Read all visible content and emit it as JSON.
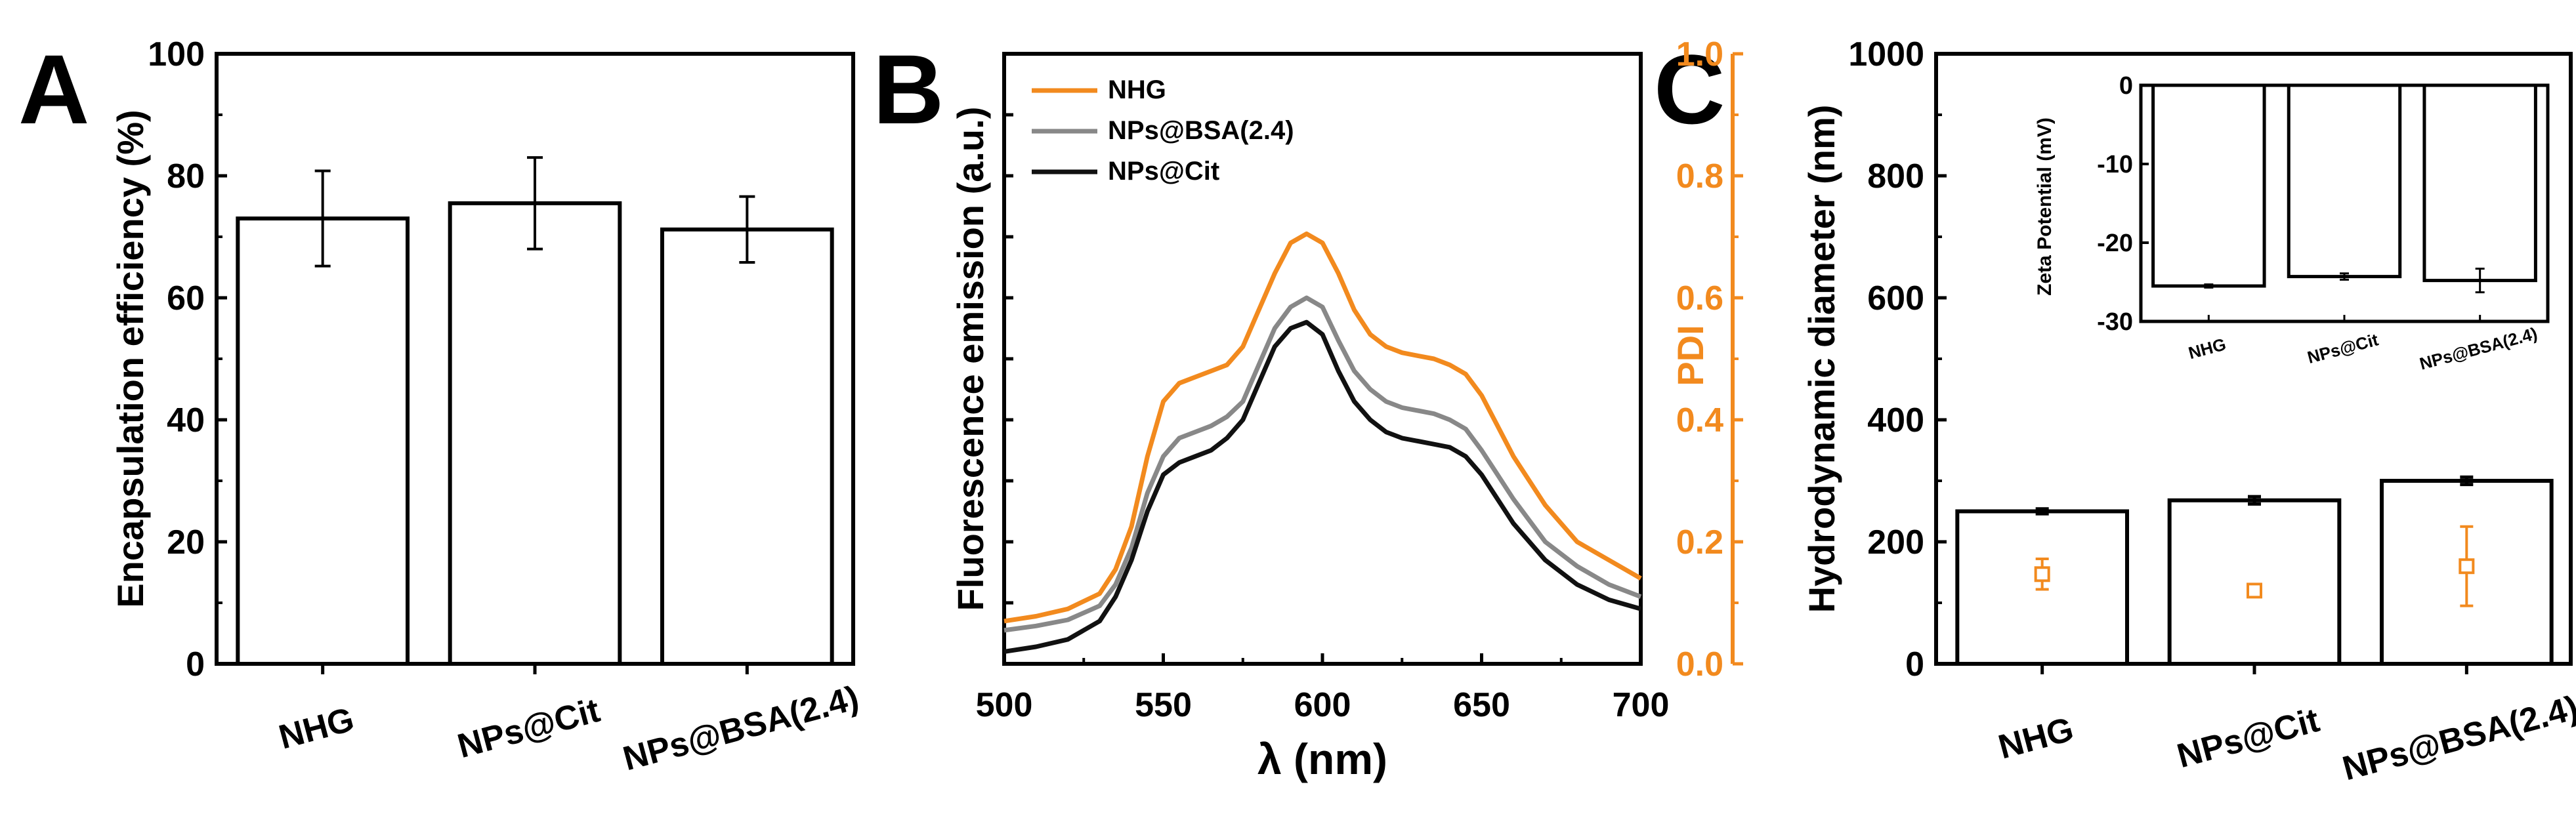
{
  "chart_data": [
    {
      "panel": "A",
      "type": "bar",
      "categories": [
        "NHG",
        "NPs@Cit",
        "NPs@BSA(2.4)"
      ],
      "values": [
        73,
        75.5,
        71.2
      ],
      "errors": [
        7.8,
        7.5,
        5.4
      ],
      "ylabel": "Encapsulation efficiency (%)",
      "ylim": [
        0,
        100
      ],
      "yticks": [
        0,
        20,
        40,
        60,
        80,
        100
      ]
    },
    {
      "panel": "B",
      "type": "line",
      "xlabel": "λ (nm)",
      "ylabel": "Fluorescence emission (a.u.)",
      "xlim": [
        500,
        700
      ],
      "xticks": [
        500,
        550,
        600,
        650,
        700
      ],
      "ylim": [
        0,
        1
      ],
      "legend_position": "top-left",
      "series": [
        {
          "name": "NHG",
          "color": "#f28a1e",
          "x": [
            500,
            510,
            520,
            530,
            535,
            540,
            545,
            550,
            555,
            560,
            565,
            570,
            575,
            580,
            585,
            590,
            595,
            600,
            605,
            610,
            615,
            620,
            625,
            630,
            635,
            640,
            645,
            650,
            655,
            660,
            670,
            680,
            690,
            700
          ],
          "y": [
            0.07,
            0.078,
            0.09,
            0.115,
            0.155,
            0.225,
            0.34,
            0.43,
            0.46,
            0.47,
            0.48,
            0.49,
            0.52,
            0.58,
            0.64,
            0.69,
            0.705,
            0.69,
            0.64,
            0.58,
            0.54,
            0.52,
            0.51,
            0.505,
            0.5,
            0.49,
            0.475,
            0.44,
            0.39,
            0.34,
            0.26,
            0.2,
            0.17,
            0.14
          ]
        },
        {
          "name": "NPs@BSA(2.4)",
          "color": "#888888",
          "x": [
            500,
            510,
            520,
            530,
            535,
            540,
            545,
            550,
            555,
            560,
            565,
            570,
            575,
            580,
            585,
            590,
            595,
            600,
            605,
            610,
            615,
            620,
            625,
            630,
            635,
            640,
            645,
            650,
            655,
            660,
            670,
            680,
            690,
            700
          ],
          "y": [
            0.055,
            0.062,
            0.072,
            0.095,
            0.13,
            0.19,
            0.28,
            0.34,
            0.37,
            0.38,
            0.39,
            0.405,
            0.43,
            0.49,
            0.55,
            0.585,
            0.6,
            0.585,
            0.53,
            0.48,
            0.45,
            0.43,
            0.42,
            0.415,
            0.41,
            0.4,
            0.385,
            0.35,
            0.31,
            0.27,
            0.2,
            0.16,
            0.13,
            0.11
          ]
        },
        {
          "name": "NPs@Cit",
          "color": "#111111",
          "x": [
            500,
            510,
            520,
            530,
            535,
            540,
            545,
            550,
            555,
            560,
            565,
            570,
            575,
            580,
            585,
            590,
            595,
            600,
            605,
            610,
            615,
            620,
            625,
            630,
            635,
            640,
            645,
            650,
            655,
            660,
            670,
            680,
            690,
            700
          ],
          "y": [
            0.02,
            0.028,
            0.04,
            0.07,
            0.11,
            0.17,
            0.25,
            0.31,
            0.33,
            0.34,
            0.35,
            0.37,
            0.4,
            0.46,
            0.52,
            0.55,
            0.56,
            0.54,
            0.48,
            0.43,
            0.4,
            0.38,
            0.37,
            0.365,
            0.36,
            0.355,
            0.34,
            0.31,
            0.27,
            0.23,
            0.17,
            0.13,
            0.105,
            0.09
          ]
        }
      ]
    },
    {
      "panel": "C",
      "type": "bar",
      "categories": [
        "NHG",
        "NPs@Cit",
        "NPs@BSA(2.4)"
      ],
      "series": [
        {
          "name": "Hydrodynamic diameter",
          "values": [
            250,
            268,
            300
          ],
          "errors": [
            4,
            6,
            6
          ]
        },
        {
          "name": "PDI",
          "color": "#f28a1e",
          "values": [
            0.147,
            0.12,
            0.16
          ],
          "errors": [
            0.025,
            0.008,
            0.065
          ]
        }
      ],
      "ylabel": "Hydrodynamic diameter (nm)",
      "ylim": [
        0,
        1000
      ],
      "yticks": [
        0,
        200,
        400,
        600,
        800,
        1000
      ],
      "y2label": "PDI",
      "y2lim": [
        0,
        1
      ],
      "y2ticks": [
        "0.0",
        "0.2",
        "0.4",
        "0.6",
        "0.8",
        "1.0"
      ],
      "inset": {
        "type": "bar",
        "categories": [
          "NHG",
          "NPs@Cit",
          "NPs@BSA(2.4)"
        ],
        "values": [
          -25.5,
          -24.3,
          -24.8
        ],
        "errors": [
          0.2,
          0.4,
          1.5
        ],
        "ylabel": "Zeta Potential (mV)",
        "ylim": [
          -30,
          0
        ],
        "yticks": [
          0,
          -10,
          -20,
          -30
        ]
      }
    }
  ],
  "panel_labels": {
    "a": "A",
    "b": "B",
    "c": "C"
  }
}
